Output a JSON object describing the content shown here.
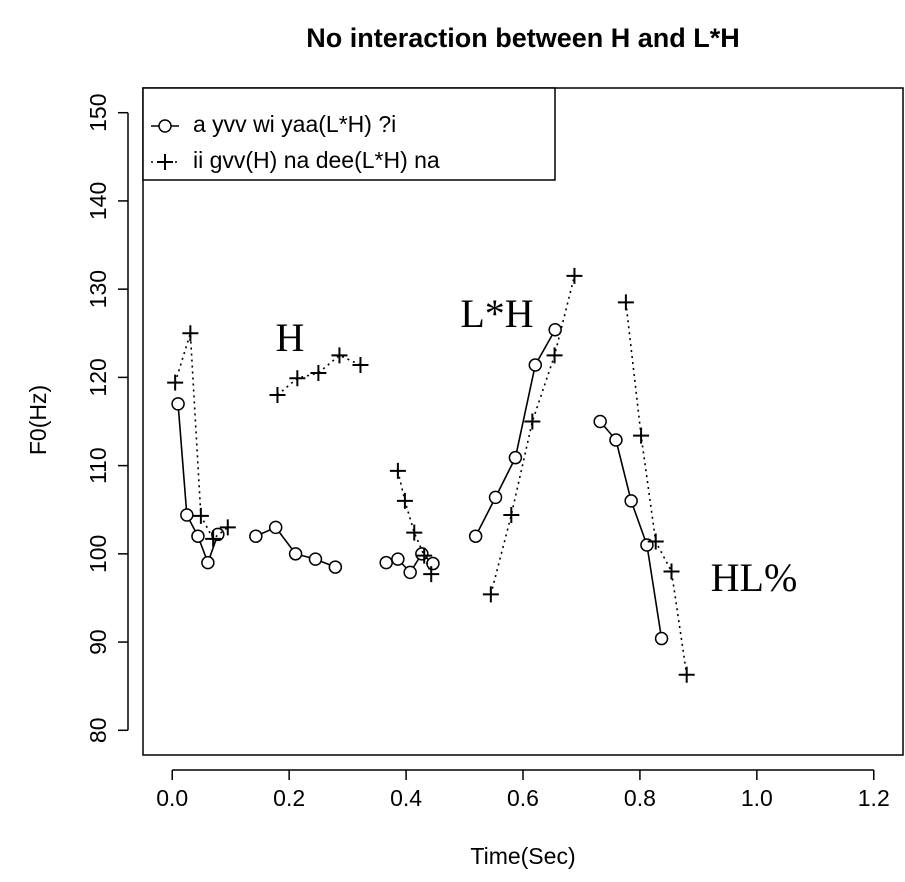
{
  "chart_data": {
    "type": "line",
    "title": "No interaction between H and L*H",
    "x_label": "Time(Sec)",
    "y_label": "F0(Hz)",
    "xlim": [
      -0.05,
      1.25
    ],
    "ylim": [
      77.2,
      152.8
    ],
    "xticks": [
      {
        "value": 0,
        "label": "0.0"
      },
      0.2,
      0.4,
      0.6,
      0.8,
      {
        "value": 1,
        "label": "1.0"
      },
      1.2
    ],
    "yticks": [
      80,
      90,
      100,
      110,
      120,
      130,
      140,
      150
    ],
    "legend": "top-left",
    "series": [
      {
        "name": "a yvv wi yaa(L*H) ?i",
        "color": "#000000",
        "marker": "circle",
        "line": "solid",
        "x": [
          0.01,
          0.025,
          0.044,
          0.061,
          0.078,
          null,
          0.143,
          0.177,
          0.211,
          0.245,
          0.279,
          null,
          0.366,
          0.386,
          0.407,
          0.427,
          0.446,
          null,
          0.519,
          0.553,
          0.587,
          0.621,
          0.655,
          null,
          0.732,
          0.759,
          0.785,
          0.812,
          0.837
        ],
        "values": [
          117,
          104.4,
          102,
          99,
          102.2,
          null,
          102,
          103,
          100,
          99.4,
          98.5,
          null,
          99,
          99.4,
          97.9,
          100,
          98.9,
          null,
          102,
          106.4,
          110.9,
          121.4,
          125.4,
          null,
          115,
          112.9,
          106,
          101,
          90.4
        ]
      },
      {
        "name": "ii gvv(H) na dee(L*H) na",
        "color": "#000000",
        "marker": "plus",
        "line": "dotted",
        "x": [
          0.005,
          0.031,
          0.049,
          0.07,
          0.095,
          null,
          0.18,
          0.214,
          0.25,
          0.286,
          0.322,
          null,
          0.386,
          0.398,
          0.414,
          0.431,
          0.443,
          null,
          0.545,
          0.58,
          0.616,
          0.654,
          0.688,
          null,
          0.776,
          0.802,
          0.827,
          0.854,
          0.88
        ],
        "values": [
          119.4,
          125,
          104.3,
          101.7,
          103,
          null,
          118,
          119.9,
          120.5,
          122.5,
          121.4,
          null,
          109.4,
          106,
          102.4,
          99.8,
          97.7,
          null,
          95.4,
          104.4,
          115,
          122.5,
          131.5,
          null,
          128.5,
          113.4,
          101.4,
          98,
          86.3
        ]
      }
    ],
    "annotations": [
      "H",
      "L*H",
      "HL%"
    ]
  }
}
